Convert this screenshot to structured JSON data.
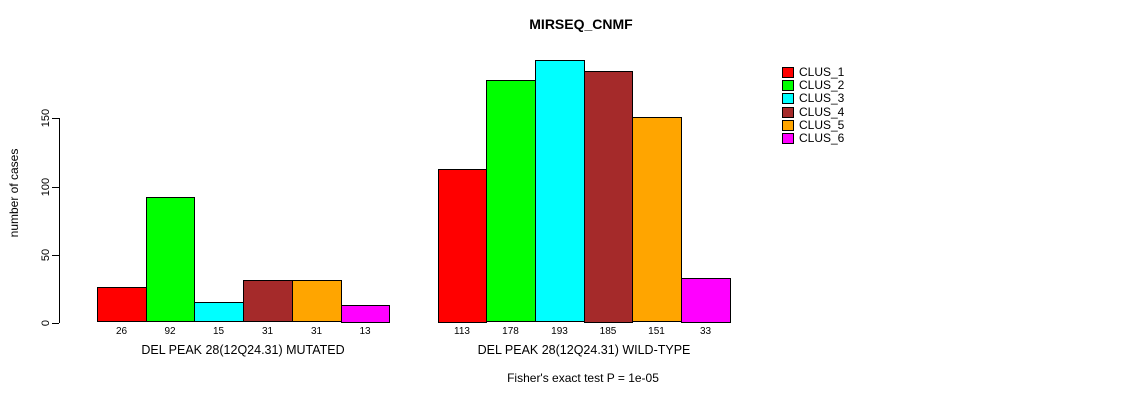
{
  "chart_data": {
    "type": "bar",
    "title": "MIRSEQ_CNMF",
    "ylabel": "number of cases",
    "yticks": [
      0,
      50,
      100,
      150
    ],
    "ylim": [
      0,
      200
    ],
    "grid": false,
    "legend_position": "right",
    "annotation": "Fisher's exact test P = 1e-05",
    "legend": [
      "CLUS_1",
      "CLUS_2",
      "CLUS_3",
      "CLUS_4",
      "CLUS_5",
      "CLUS_6"
    ],
    "colors": [
      "#FF0000",
      "#00FF00",
      "#00FFFF",
      "#A52A2A",
      "#FFA500",
      "#FF00FF"
    ],
    "groups": [
      {
        "label": "DEL PEAK 28(12Q24.31) MUTATED",
        "values": [
          26,
          92,
          15,
          31,
          31,
          13
        ]
      },
      {
        "label": "DEL PEAK 28(12Q24.31) WILD-TYPE",
        "values": [
          113,
          178,
          193,
          185,
          151,
          33
        ]
      }
    ]
  }
}
